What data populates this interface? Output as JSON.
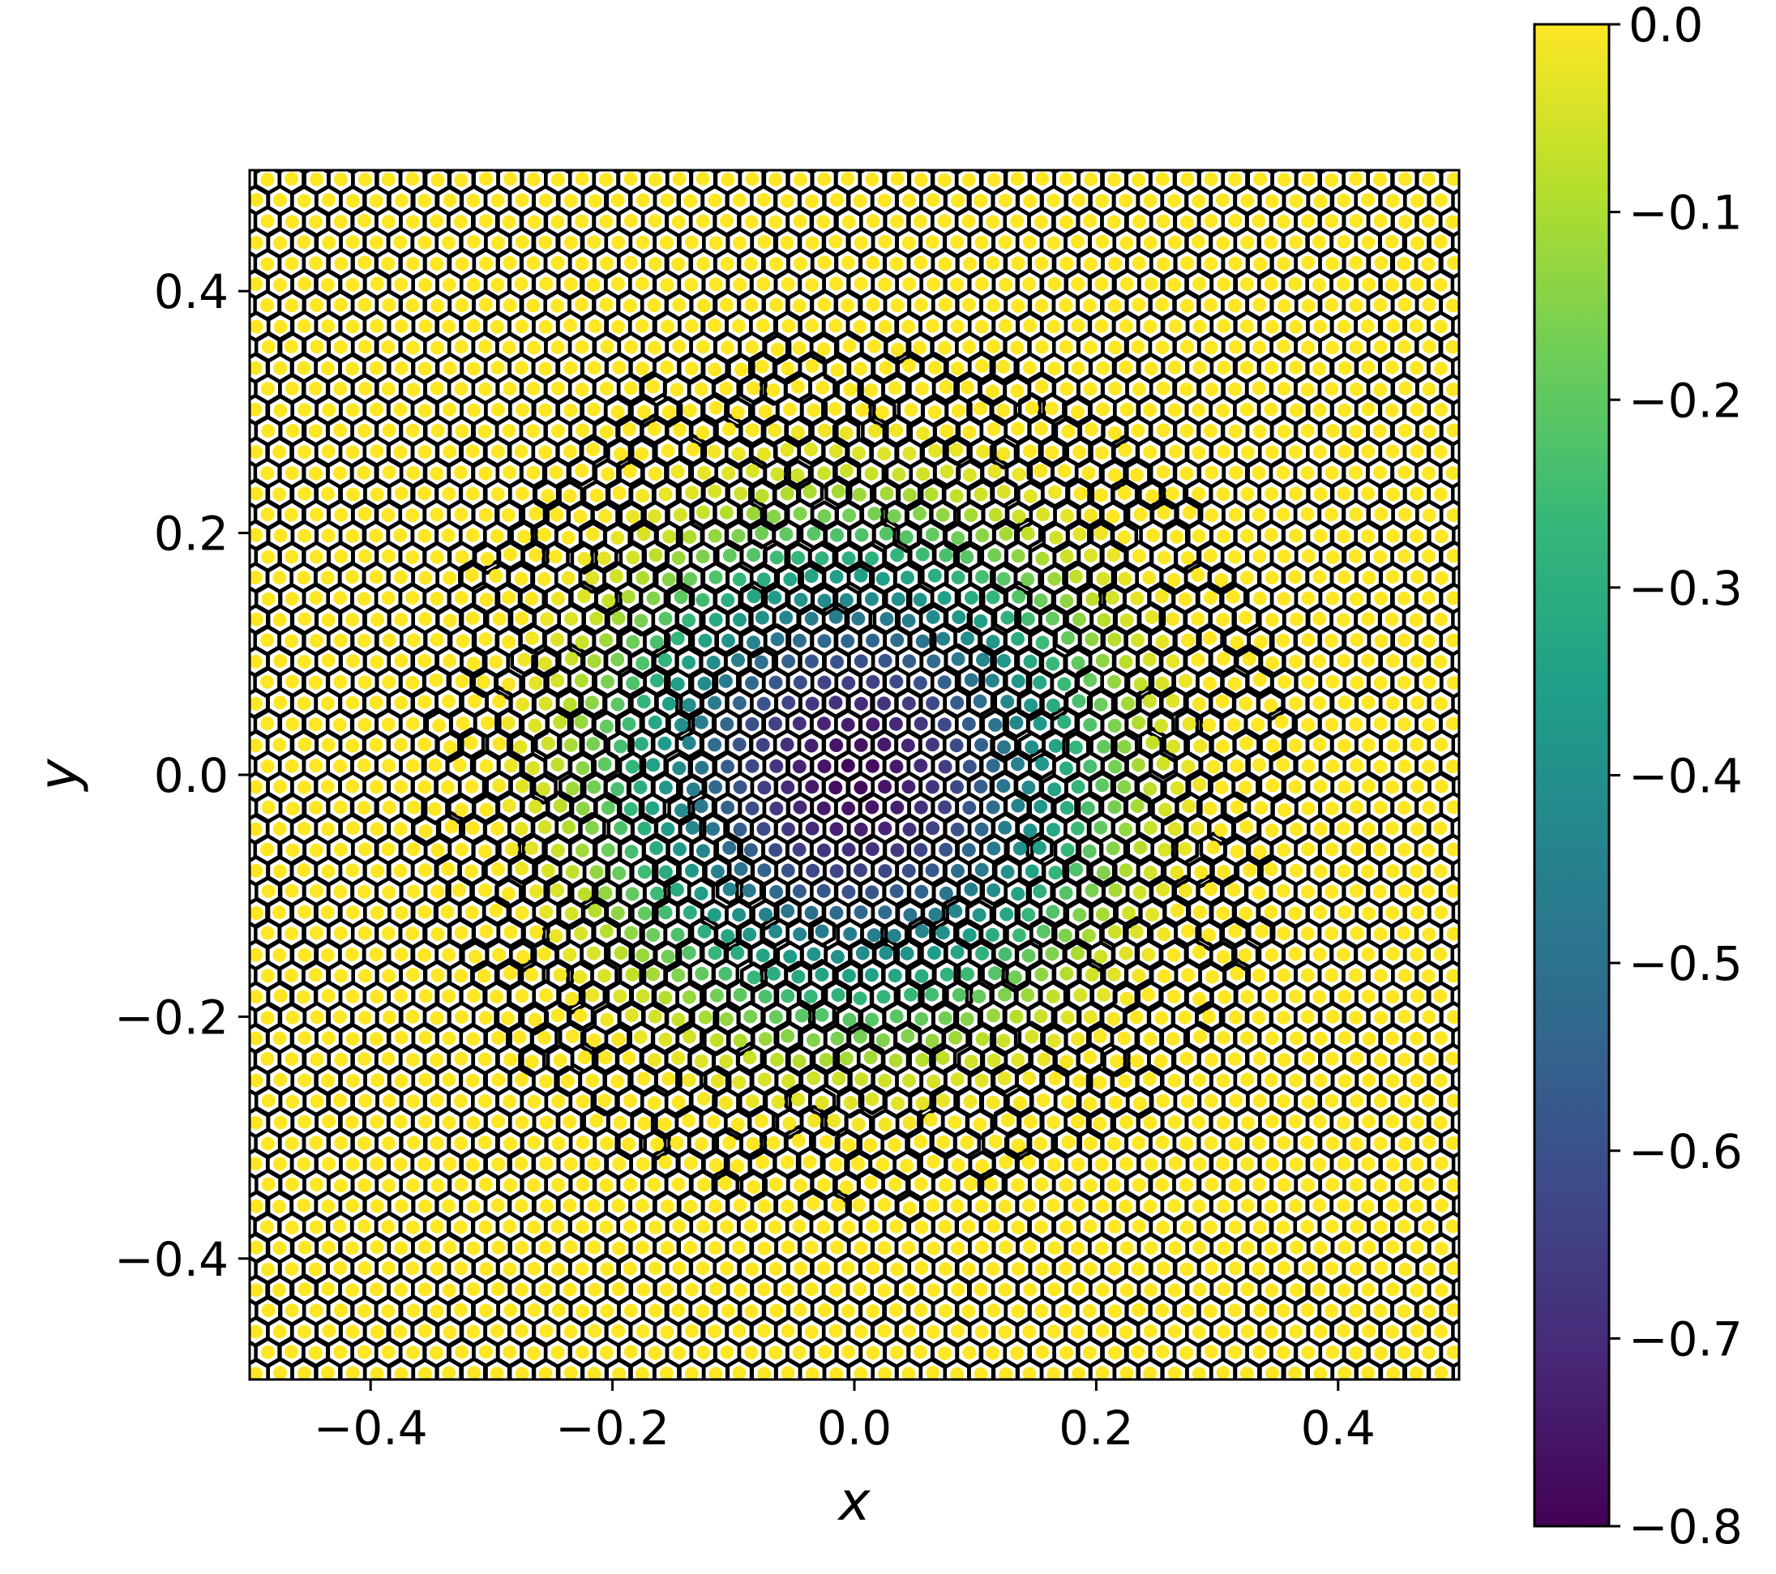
{
  "chart_data": {
    "type": "scatter",
    "title": "",
    "xlabel": "x",
    "ylabel": "y",
    "xlim": [
      -0.5,
      0.5
    ],
    "ylim": [
      -0.5,
      0.5
    ],
    "x_ticks": [
      -0.4,
      -0.2,
      0.0,
      0.2,
      0.4
    ],
    "y_ticks": [
      -0.4,
      -0.2,
      0.0,
      0.2,
      0.4
    ],
    "x_tick_labels": [
      "−0.4",
      "−0.2",
      "0.0",
      "0.2",
      "0.4"
    ],
    "y_tick_labels": [
      "−0.4",
      "−0.2",
      "0.0",
      "0.2",
      "0.4"
    ],
    "grid": false,
    "overlay": "voronoi cells outlined in black around each point",
    "point_color_field": {
      "description": "colour value per point, minimum at the centre (x≈0, y≈0), rising radially to 0 near radius 0.3",
      "center": [
        0.0,
        0.0
      ],
      "center_value": -0.8,
      "zero_radius": 0.3,
      "samples": [
        {
          "r": 0.0,
          "value": -0.8
        },
        {
          "r": 0.05,
          "value": -0.72
        },
        {
          "r": 0.1,
          "value": -0.58
        },
        {
          "r": 0.15,
          "value": -0.4
        },
        {
          "r": 0.2,
          "value": -0.22
        },
        {
          "r": 0.25,
          "value": -0.06
        },
        {
          "r": 0.3,
          "value": 0.0
        }
      ]
    },
    "colorbar": {
      "colormap": "viridis",
      "range": [
        -0.8,
        0.0
      ],
      "ticks": [
        0.0,
        -0.1,
        -0.2,
        -0.3,
        -0.4,
        -0.5,
        -0.6,
        -0.7,
        -0.8
      ],
      "tick_labels": [
        "0.0",
        "−0.1",
        "−0.2",
        "−0.3",
        "−0.4",
        "−0.5",
        "−0.6",
        "−0.7",
        "−0.8"
      ]
    },
    "colors": {
      "viridis_low": "#440154",
      "viridis_mid": "#21918c",
      "viridis_high": "#fde725",
      "edge": "#000000"
    }
  }
}
